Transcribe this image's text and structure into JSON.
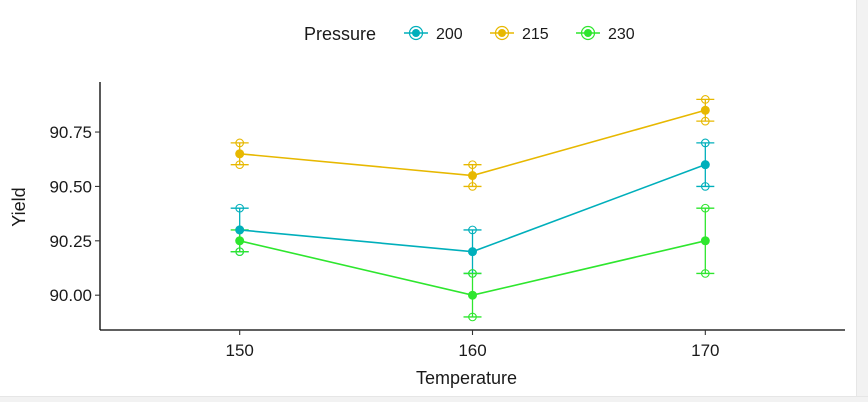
{
  "chart_data": {
    "type": "line",
    "xlabel": "Temperature",
    "ylabel": "Yield",
    "x": [
      150,
      160,
      170
    ],
    "xlim": [
      144,
      176
    ],
    "ylim": [
      89.84,
      90.98
    ],
    "yticks": [
      90.0,
      90.25,
      90.5,
      90.75
    ],
    "ytick_labels": [
      "90.00",
      "90.25",
      "90.50",
      "90.75"
    ],
    "xtick_labels": [
      "150",
      "160",
      "170"
    ],
    "legend": {
      "title": "Pressure",
      "position": "top"
    },
    "grid": false,
    "series": [
      {
        "name": "200",
        "color": "#00AFBB",
        "values": [
          90.3,
          90.2,
          90.6
        ],
        "lower": [
          90.2,
          90.1,
          90.5
        ],
        "upper": [
          90.4,
          90.3,
          90.7
        ]
      },
      {
        "name": "215",
        "color": "#E7B800",
        "values": [
          90.65,
          90.55,
          90.85
        ],
        "lower": [
          90.6,
          90.5,
          90.8
        ],
        "upper": [
          90.7,
          90.6,
          90.9
        ]
      },
      {
        "name": "230",
        "color": "#2EE62E",
        "values": [
          90.25,
          90.0,
          90.25
        ],
        "lower": [
          90.2,
          89.9,
          90.1
        ],
        "upper": [
          90.3,
          90.1,
          90.4
        ]
      }
    ]
  }
}
